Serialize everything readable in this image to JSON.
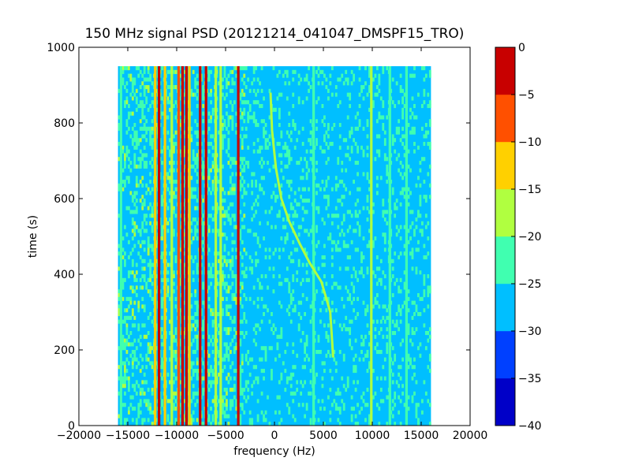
{
  "chart_data": {
    "type": "heatmap",
    "title": "150 MHz signal PSD (20121214_041047_DMSPF15_TRO)",
    "xlabel": "frequency (Hz)",
    "ylabel": "time (s)",
    "xlim": [
      -20000,
      20000
    ],
    "ylim": [
      0,
      1000
    ],
    "x_ticks": [
      -20000,
      -15000,
      -10000,
      -5000,
      0,
      5000,
      10000,
      15000,
      20000
    ],
    "x_tick_labels": [
      "−20000",
      "−15000",
      "−10000",
      "−5000",
      "0",
      "5000",
      "10000",
      "15000",
      "20000"
    ],
    "y_ticks": [
      0,
      200,
      400,
      600,
      800,
      1000
    ],
    "y_tick_labels": [
      "0",
      "200",
      "400",
      "600",
      "800",
      "1000"
    ],
    "data_extent": {
      "freq_min": -16000,
      "freq_max": 16000,
      "time_min": 0,
      "time_max": 950
    },
    "colorbar": {
      "min": -40,
      "max": 0,
      "levels": [
        -40,
        -35,
        -30,
        -25,
        -20,
        -15,
        -10,
        -5,
        0
      ],
      "tick_labels": [
        "−40",
        "−35",
        "−30",
        "−25",
        "−20",
        "−15",
        "−10",
        "−5",
        "0"
      ],
      "colors": [
        "#0000c8",
        "#0040ff",
        "#00bfff",
        "#40ffb0",
        "#b0ff40",
        "#ffd000",
        "#ff5000",
        "#c80000"
      ]
    },
    "background_level": -27,
    "high_noise_band": {
      "from": -16000,
      "to": -3000,
      "level": -25
    },
    "persistent_lines": [
      {
        "freq": -15700,
        "level": -22
      },
      {
        "freq": -12200,
        "level": -12
      },
      {
        "freq": -11800,
        "level": -5
      },
      {
        "freq": -11200,
        "level": -12
      },
      {
        "freq": -10500,
        "level": -17
      },
      {
        "freq": -9800,
        "level": -7
      },
      {
        "freq": -9400,
        "level": -3
      },
      {
        "freq": -9000,
        "level": -2
      },
      {
        "freq": -8700,
        "level": -12
      },
      {
        "freq": -7600,
        "level": -2
      },
      {
        "freq": -7000,
        "level": -5
      },
      {
        "freq": -6000,
        "level": -17
      },
      {
        "freq": -5500,
        "level": -17
      },
      {
        "freq": -3700,
        "level": -2
      },
      {
        "freq": 4000,
        "level": -22
      },
      {
        "freq": 9900,
        "level": -17
      },
      {
        "freq": 11800,
        "level": -22
      },
      {
        "freq": 13500,
        "level": -22
      }
    ],
    "doppler_trace": {
      "level": -17,
      "points": [
        {
          "time": 180,
          "freq": 6000
        },
        {
          "time": 300,
          "freq": 5700
        },
        {
          "time": 380,
          "freq": 4800
        },
        {
          "time": 430,
          "freq": 3600
        },
        {
          "time": 480,
          "freq": 2600
        },
        {
          "time": 540,
          "freq": 1500
        },
        {
          "time": 600,
          "freq": 700
        },
        {
          "time": 680,
          "freq": 150
        },
        {
          "time": 780,
          "freq": -250
        },
        {
          "time": 880,
          "freq": -400
        }
      ]
    }
  }
}
